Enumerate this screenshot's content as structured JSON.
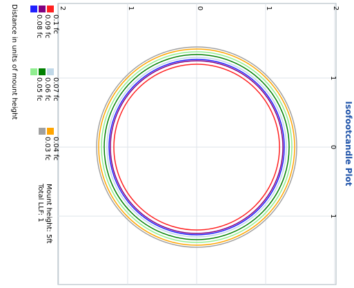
{
  "chart_data": {
    "type": "contour",
    "title": "Isofootcandle Plot",
    "axis_label": "Distance in units of mount height",
    "ticks": {
      "horizontal": [
        "2",
        "1",
        "0",
        "1",
        "2"
      ],
      "vertical": [
        "1",
        "0",
        "1"
      ]
    },
    "info": {
      "mount_height": "Mount height: 5ft",
      "total_llf": "Total LLF: 1"
    },
    "series": [
      {
        "name": "0.1 fc",
        "color": "#ff2020",
        "radius": 1.2
      },
      {
        "name": "0.09 fc",
        "color": "#800080",
        "radius": 1.25
      },
      {
        "name": "0.08 fc",
        "color": "#2020ff",
        "radius": 1.27
      },
      {
        "name": "0.07 fc",
        "color": "#c0d8e8",
        "radius": 1.3
      },
      {
        "name": "0.06 fc",
        "color": "#008000",
        "radius": 1.34
      },
      {
        "name": "0.05 fc",
        "color": "#90ee90",
        "radius": 1.38
      },
      {
        "name": "0.04 fc",
        "color": "#ffa500",
        "radius": 1.42
      },
      {
        "name": "0.03 fc",
        "color": "#a0a0a0",
        "radius": 1.45
      }
    ]
  }
}
